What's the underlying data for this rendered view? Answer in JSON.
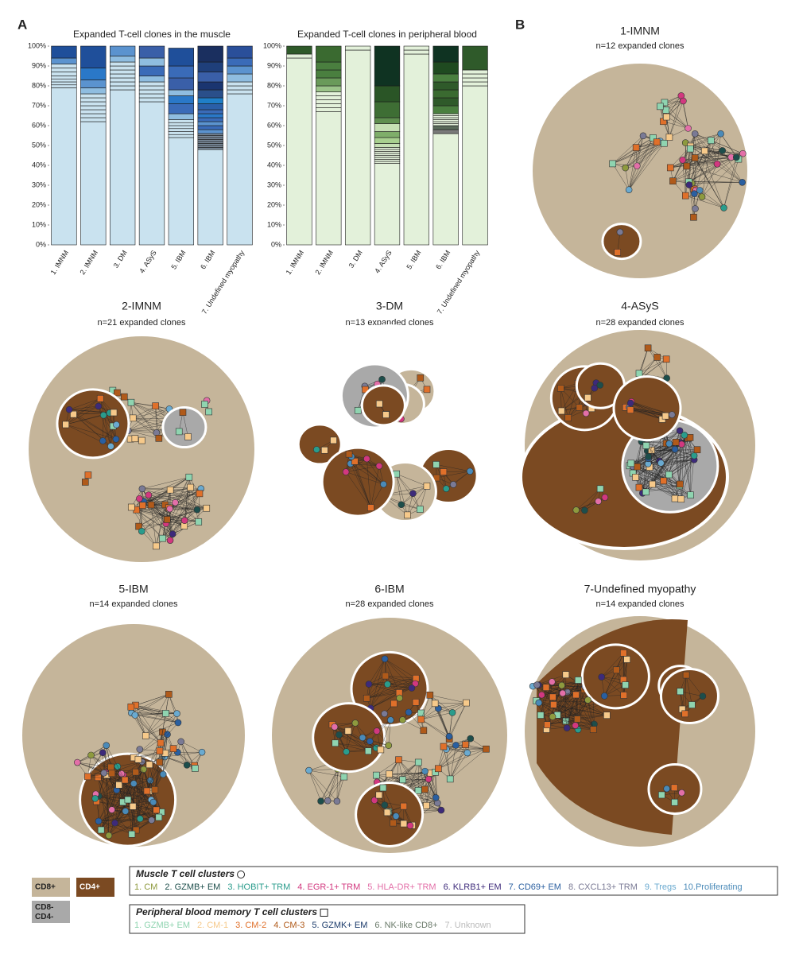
{
  "panel_labels": [
    "A",
    "B"
  ],
  "chart_data": [
    {
      "type": "bar",
      "stacked": true,
      "title": "Expanded T-cell clones in the muscle",
      "categories": [
        "1. IMNM",
        "2. IMNM",
        "3. DM",
        "4. ASyS",
        "5. IBM",
        "6. IBM",
        "7. Undefined myopathy"
      ],
      "ylim": [
        0,
        100
      ],
      "yticks": [
        {
          "value": 0,
          "label": "0%"
        },
        {
          "value": 10,
          "label": "10%"
        },
        {
          "value": 20,
          "label": "20%"
        },
        {
          "value": 30,
          "label": "30%"
        },
        {
          "value": 40,
          "label": "40%"
        },
        {
          "value": 50,
          "label": "50%"
        },
        {
          "value": 60,
          "label": "60%"
        },
        {
          "value": 70,
          "label": "70%"
        },
        {
          "value": 80,
          "label": "80%"
        },
        {
          "value": 90,
          "label": "90%"
        },
        {
          "value": 100,
          "label": "100%"
        }
      ],
      "stacks": [
        {
          "values": [
            79,
            1.5,
            1.5,
            1.5,
            1.5,
            2,
            2,
            2,
            3,
            6
          ],
          "colors": [
            "#c9e2ef",
            "#c9e2ef",
            "#c9e2ef",
            "#c9e2ef",
            "#c9e2ef",
            "#c9e2ef",
            "#c9e2ef",
            "#c9e2ef",
            "#5b93cf",
            "#1f4f9a"
          ]
        },
        {
          "values": [
            62,
            2,
            2,
            2,
            2,
            2,
            2,
            2,
            3,
            4,
            6,
            11
          ],
          "colors": [
            "#c9e2ef",
            "#c9e2ef",
            "#c9e2ef",
            "#c9e2ef",
            "#c9e2ef",
            "#c9e2ef",
            "#c9e2ef",
            "#c9e2ef",
            "#8fbde0",
            "#5b93cf",
            "#2a78c8",
            "#1f4f9a"
          ]
        },
        {
          "values": [
            78,
            2,
            2,
            2,
            2,
            2,
            2,
            2,
            3,
            5
          ],
          "colors": [
            "#c9e2ef",
            "#c9e2ef",
            "#c9e2ef",
            "#c9e2ef",
            "#c9e2ef",
            "#c9e2ef",
            "#c9e2ef",
            "#c9e2ef",
            "#8fbde0",
            "#5b93cf"
          ]
        },
        {
          "values": [
            72,
            2,
            2,
            2,
            2,
            2,
            3,
            5,
            4,
            6
          ],
          "colors": [
            "#c9e2ef",
            "#c9e2ef",
            "#c9e2ef",
            "#c9e2ef",
            "#c9e2ef",
            "#c9e2ef",
            "#8fbde0",
            "#3a6bb8",
            "#8fbde0",
            "#3a5fa8"
          ]
        },
        {
          "values": [
            54,
            1.5,
            1.5,
            1.5,
            1.5,
            1.5,
            1.5,
            3,
            5,
            4,
            3,
            6,
            6,
            9
          ],
          "colors": [
            "#c9e2ef",
            "#c9e2ef",
            "#c9e2ef",
            "#c9e2ef",
            "#c9e2ef",
            "#c9e2ef",
            "#c9e2ef",
            "#8fbde0",
            "#3a6bb8",
            "#2a78c8",
            "#8fbde0",
            "#3a5fa8",
            "#3a6bb8",
            "#1f4f9a"
          ]
        },
        {
          "values": [
            48,
            1,
            1,
            1,
            1,
            1,
            1,
            1,
            1,
            2,
            2,
            2,
            2,
            2,
            2,
            3,
            3,
            4,
            4,
            5,
            5,
            8
          ],
          "colors": [
            "#c9e2ef",
            "#7a8a9a",
            "#7a8a9a",
            "#7a8a9a",
            "#7a8a9a",
            "#7a8a9a",
            "#7a8a9a",
            "#7a8a9a",
            "#7a8a9a",
            "#5b93cf",
            "#3a6bb8",
            "#5b93cf",
            "#3a6bb8",
            "#2a78c8",
            "#3a6bb8",
            "#2a5fa8",
            "#1f7fc8",
            "#2a4f8a",
            "#1a3570",
            "#3a5fa8",
            "#1f3f7a",
            "#1a2f5f"
          ]
        },
        {
          "values": [
            76,
            2,
            2,
            2,
            4,
            4,
            4,
            6
          ],
          "colors": [
            "#c9e2ef",
            "#c9e2ef",
            "#c9e2ef",
            "#c9e2ef",
            "#8fbde0",
            "#5b93cf",
            "#3a6bb8",
            "#2a4f9a"
          ]
        }
      ]
    },
    {
      "type": "bar",
      "stacked": true,
      "title": "Expanded T-cell clones in peripheral blood",
      "categories": [
        "1. IMNM",
        "2. IMNM",
        "3. DM",
        "4. ASyS",
        "5. IBM",
        "6. IBM",
        "7. Undefined myopathy"
      ],
      "ylim": [
        0,
        100
      ],
      "yticks": [
        {
          "value": 0,
          "label": "0%"
        },
        {
          "value": 10,
          "label": "10%"
        },
        {
          "value": 20,
          "label": "20%"
        },
        {
          "value": 30,
          "label": "30%"
        },
        {
          "value": 40,
          "label": "40%"
        },
        {
          "value": 50,
          "label": "50%"
        },
        {
          "value": 60,
          "label": "60%"
        },
        {
          "value": 70,
          "label": "70%"
        },
        {
          "value": 80,
          "label": "80%"
        },
        {
          "value": 90,
          "label": "90%"
        },
        {
          "value": 100,
          "label": "100%"
        }
      ],
      "stacks": [
        {
          "values": [
            94,
            2,
            4
          ],
          "colors": [
            "#e3f1da",
            "#e3f1da",
            "#2f5a2a"
          ]
        },
        {
          "values": [
            67,
            2,
            2,
            2,
            2,
            2,
            3,
            4,
            4,
            4,
            8
          ],
          "colors": [
            "#e3f1da",
            "#e3f1da",
            "#e3f1da",
            "#e3f1da",
            "#e3f1da",
            "#e3f1da",
            "#9cc48a",
            "#6a9a5a",
            "#4a7f3f",
            "#4a7f3f",
            "#3a6a30"
          ]
        },
        {
          "values": [
            98,
            2
          ],
          "colors": [
            "#e3f1da",
            "#e3f1da"
          ]
        },
        {
          "values": [
            41,
            1,
            1,
            1,
            1,
            1,
            1,
            1,
            1,
            2,
            3,
            3,
            4,
            3,
            8,
            8,
            20
          ],
          "colors": [
            "#e3f1da",
            "#e3f1da",
            "#e3f1da",
            "#e3f1da",
            "#e3f1da",
            "#e3f1da",
            "#e3f1da",
            "#e3f1da",
            "#e3f1da",
            "#c6e0b4",
            "#a8d08f",
            "#7fae6a",
            "#c6e0b4",
            "#5f8f4f",
            "#3e6e34",
            "#2a5526",
            "#0f3322"
          ]
        },
        {
          "values": [
            96,
            2,
            2
          ],
          "colors": [
            "#e3f1da",
            "#e3f1da",
            "#e3f1da"
          ]
        },
        {
          "values": [
            56,
            2,
            2,
            1,
            1,
            1,
            1,
            1,
            1,
            4,
            4,
            4,
            4,
            4,
            6,
            8
          ],
          "colors": [
            "#e3f1da",
            "#7a7a7a",
            "#5a6a5a",
            "#e3f1da",
            "#e3f1da",
            "#e3f1da",
            "#e3f1da",
            "#e3f1da",
            "#e3f1da",
            "#4a7f3f",
            "#2f5a2a",
            "#3a6a30",
            "#2f5a2a",
            "#4a7f3f",
            "#1f4a20",
            "#0f3322"
          ]
        },
        {
          "values": [
            80,
            2,
            2,
            2,
            2,
            12
          ],
          "colors": [
            "#e3f1da",
            "#e3f1da",
            "#e3f1da",
            "#e3f1da",
            "#e3f1da",
            "#2f5a2a"
          ]
        }
      ]
    }
  ],
  "networks": [
    {
      "title": "1-IMNM",
      "subtitle": "n=12 expanded clones"
    },
    {
      "title": "2-IMNM",
      "subtitle": "n=21 expanded clones"
    },
    {
      "title": "3-DM",
      "subtitle": "n=13 expanded clones"
    },
    {
      "title": "4-ASyS",
      "subtitle": "n=28 expanded clones"
    },
    {
      "title": "5-IBM",
      "subtitle": "n=14 expanded clones"
    },
    {
      "title": "6-IBM",
      "subtitle": "n=28 expanded clones"
    },
    {
      "title": "7-Undefined myopathy",
      "subtitle": "n=14 expanded clones"
    }
  ],
  "legend": {
    "compartments": [
      {
        "label": "CD8+",
        "color": "#c5b59a"
      },
      {
        "label": "CD4+",
        "color": "#7b4a22"
      },
      {
        "label": "CD8-\nCD4-",
        "color": "#a9a9a9"
      }
    ],
    "muscle": {
      "title": "Muscle T cell clusters",
      "items": [
        {
          "label": "1. CM",
          "color": "#8e9a3e"
        },
        {
          "label": "2. GZMB+ EM",
          "color": "#1d4e4b"
        },
        {
          "label": "3. HOBIT+ TRM",
          "color": "#2a9c8c"
        },
        {
          "label": "4. EGR-1+ TRM",
          "color": "#d2387f"
        },
        {
          "label": "5. HLA-DR+ TRM",
          "color": "#e36fa8"
        },
        {
          "label": "6. KLRB1+ EM",
          "color": "#3d2a7a"
        },
        {
          "label": "7. CD69+ EM",
          "color": "#2a5fa0"
        },
        {
          "label": "8. CXCL13+ TRM",
          "color": "#7a7a95"
        },
        {
          "label": "9. Tregs",
          "color": "#6aaad0"
        },
        {
          "label": "10.Proliferating",
          "color": "#4a8ab8"
        }
      ]
    },
    "blood": {
      "title": "Peripheral blood  memory T cell clusters",
      "items": [
        {
          "label": "1. GZMB+ EM",
          "color": "#8fd4b0"
        },
        {
          "label": "2. CM-1",
          "color": "#f6c98a"
        },
        {
          "label": "3. CM-2",
          "color": "#e0702a"
        },
        {
          "label": "4. CM-3",
          "color": "#b05a1a"
        },
        {
          "label": "5. GZMK+ EM",
          "color": "#1a3a6a"
        },
        {
          "label": "6. NK-like CD8+",
          "color": "#6a7a6a"
        },
        {
          "label": "7. Unknown",
          "color": "#bbbbbb"
        }
      ]
    }
  }
}
